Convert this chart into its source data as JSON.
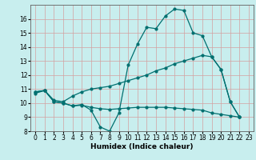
{
  "xlabel": "Humidex (Indice chaleur)",
  "xlim": [
    -0.5,
    23.5
  ],
  "ylim": [
    8,
    17
  ],
  "yticks": [
    8,
    9,
    10,
    11,
    12,
    13,
    14,
    15,
    16
  ],
  "xticks": [
    0,
    1,
    2,
    3,
    4,
    5,
    6,
    7,
    8,
    9,
    10,
    11,
    12,
    13,
    14,
    15,
    16,
    17,
    18,
    19,
    20,
    21,
    22,
    23
  ],
  "bg_color": "#c8eeee",
  "grid_color": "#d4a0a0",
  "line_color": "#007070",
  "line1_x": [
    0,
    1,
    2,
    3,
    4,
    5,
    6,
    7,
    8,
    9,
    10,
    11,
    12,
    13,
    14,
    15,
    16,
    17,
    18,
    19,
    20,
    21,
    22
  ],
  "line1_y": [
    10.7,
    10.9,
    10.1,
    10.0,
    9.8,
    9.9,
    9.5,
    8.3,
    8.0,
    9.3,
    12.7,
    14.2,
    15.4,
    15.3,
    16.2,
    16.7,
    16.6,
    15.0,
    14.8,
    13.3,
    12.4,
    10.1,
    9.0
  ],
  "line2_x": [
    0,
    1,
    2,
    3,
    4,
    5,
    6,
    7,
    8,
    9,
    10,
    11,
    12,
    13,
    14,
    15,
    16,
    17,
    18,
    19,
    20,
    21,
    22
  ],
  "line2_y": [
    10.8,
    10.9,
    10.2,
    10.1,
    10.5,
    10.8,
    11.0,
    11.1,
    11.2,
    11.4,
    11.6,
    11.8,
    12.0,
    12.3,
    12.5,
    12.8,
    13.0,
    13.2,
    13.4,
    13.3,
    12.4,
    10.1,
    9.0
  ],
  "line3_x": [
    0,
    1,
    2,
    3,
    4,
    5,
    6,
    7,
    8,
    9,
    10,
    11,
    12,
    13,
    14,
    15,
    16,
    17,
    18,
    19,
    20,
    21,
    22
  ],
  "line3_y": [
    10.8,
    10.9,
    10.1,
    10.0,
    9.8,
    9.85,
    9.7,
    9.6,
    9.55,
    9.6,
    9.65,
    9.7,
    9.7,
    9.7,
    9.7,
    9.65,
    9.6,
    9.55,
    9.5,
    9.3,
    9.2,
    9.1,
    9.0
  ]
}
